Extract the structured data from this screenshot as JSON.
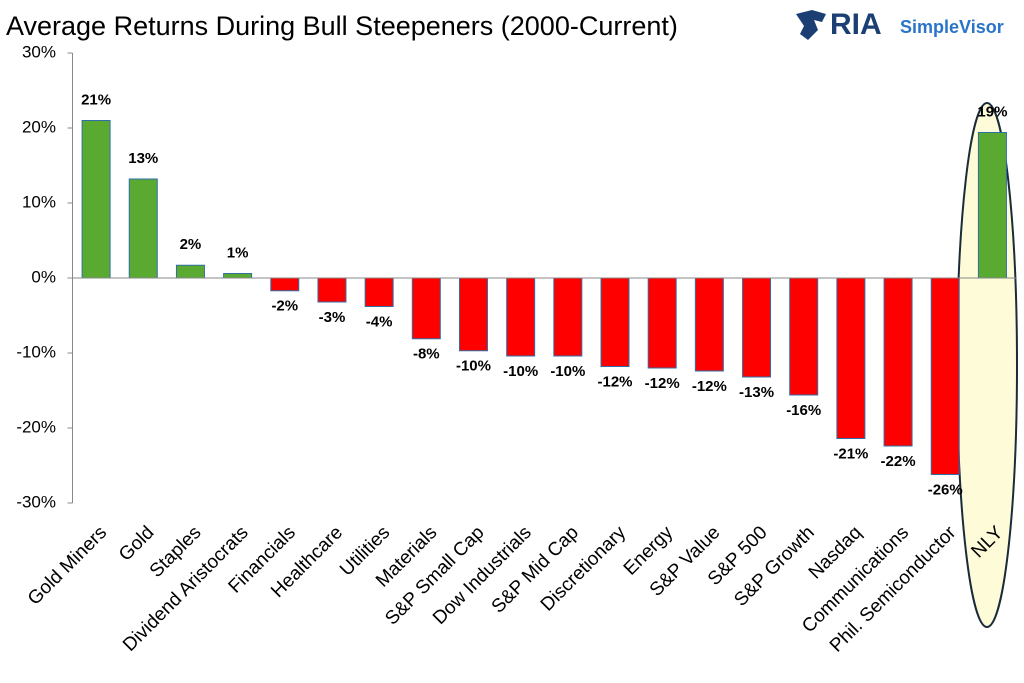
{
  "chart_data": {
    "type": "bar",
    "title": "Average Returns During Bull Steepeners (2000-Current)",
    "logo": {
      "brand": "RIA",
      "product": "SimpleVisor"
    },
    "categories": [
      "Gold Miners",
      "Gold",
      "Staples",
      "Dividend Aristocrats",
      "Financials",
      "Healthcare",
      "Utilities",
      "Materials",
      "S&P Small Cap",
      "Dow Industrials",
      "S&P Mid Cap",
      "Discretionary",
      "Energy",
      "S&P Value",
      "S&P 500",
      "S&P Growth",
      "Nasdaq",
      "Communications",
      "Phil. Semiconductor",
      "NLY"
    ],
    "values": [
      21,
      13.2,
      1.7,
      0.6,
      -1.7,
      -3.2,
      -3.8,
      -8.1,
      -9.7,
      -10.4,
      -10.4,
      -11.8,
      -12,
      -12.4,
      -13.2,
      -15.6,
      -21.4,
      -22.4,
      -26.2,
      19.4
    ],
    "value_labels": [
      "21%",
      "13%",
      "2%",
      "1%",
      "-2%",
      "-3%",
      "-4%",
      "-8%",
      "-10%",
      "-10%",
      "-10%",
      "-12%",
      "-12%",
      "-12%",
      "-13%",
      "-16%",
      "-21%",
      "-22%",
      "-26%",
      "19%"
    ],
    "positive_color": "#5aaa32",
    "negative_color": "#ff0000",
    "ylim": [
      -30,
      30
    ],
    "yticks": [
      {
        "value": 30,
        "label": "30%"
      },
      {
        "value": 20,
        "label": "20%"
      },
      {
        "value": 10,
        "label": "10%"
      },
      {
        "value": 0,
        "label": "0%"
      },
      {
        "value": -10,
        "label": "-10%"
      },
      {
        "value": -20,
        "label": "-20%"
      },
      {
        "value": -30,
        "label": "-30%"
      }
    ]
  }
}
